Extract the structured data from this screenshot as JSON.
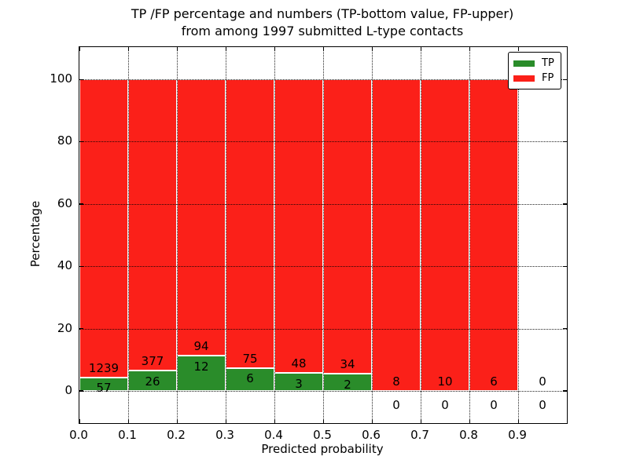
{
  "chart_data": {
    "type": "bar",
    "subtype": "stacked-percentage-histogram",
    "title_lines": [
      "TP /FP percentage and numbers (TP-bottom value, FP-upper)",
      "from among 1997 submitted L-type contacts"
    ],
    "xlabel": "Predicted probability",
    "ylabel": "Percentage",
    "total_submitted": 1997,
    "xlim": [
      0.0,
      1.0
    ],
    "ylim": [
      -10.33,
      110.33
    ],
    "bin_width": 0.1,
    "grid": true,
    "x_tick_values": [
      0.0,
      0.1,
      0.2,
      0.3,
      0.4,
      0.5,
      0.6,
      0.7,
      0.8,
      0.9
    ],
    "x_tick_labels": [
      "0.0",
      "0.1",
      "0.2",
      "0.3",
      "0.4",
      "0.5",
      "0.6",
      "0.7",
      "0.8",
      "0.9"
    ],
    "y_tick_values": [
      0,
      20,
      40,
      60,
      80,
      100
    ],
    "y_tick_labels": [
      "0",
      "20",
      "40",
      "60",
      "80",
      "100"
    ],
    "legend": {
      "position": "upper right",
      "items": [
        {
          "label": "TP",
          "color": "#2a8c2a"
        },
        {
          "label": "FP",
          "color": "#fb2019"
        }
      ]
    },
    "bins": [
      {
        "x0": 0.0,
        "x1": 0.1,
        "tp": 57,
        "fp": 1239,
        "tp_pct": 4.4,
        "bar_pct": 100
      },
      {
        "x0": 0.1,
        "x1": 0.2,
        "tp": 26,
        "fp": 377,
        "tp_pct": 6.45,
        "bar_pct": 100
      },
      {
        "x0": 0.2,
        "x1": 0.3,
        "tp": 12,
        "fp": 94,
        "tp_pct": 11.32,
        "bar_pct": 100
      },
      {
        "x0": 0.3,
        "x1": 0.4,
        "tp": 6,
        "fp": 75,
        "tp_pct": 7.41,
        "bar_pct": 100
      },
      {
        "x0": 0.4,
        "x1": 0.5,
        "tp": 3,
        "fp": 48,
        "tp_pct": 5.88,
        "bar_pct": 100
      },
      {
        "x0": 0.5,
        "x1": 0.6,
        "tp": 2,
        "fp": 34,
        "tp_pct": 5.56,
        "bar_pct": 100
      },
      {
        "x0": 0.6,
        "x1": 0.7,
        "tp": 0,
        "fp": 8,
        "tp_pct": 0,
        "bar_pct": 100
      },
      {
        "x0": 0.7,
        "x1": 0.8,
        "tp": 0,
        "fp": 10,
        "tp_pct": 0,
        "bar_pct": 100
      },
      {
        "x0": 0.8,
        "x1": 0.9,
        "tp": 0,
        "fp": 6,
        "tp_pct": 0,
        "bar_pct": 100
      },
      {
        "x0": 0.9,
        "x1": 1.0,
        "tp": 0,
        "fp": 0,
        "tp_pct": 0,
        "bar_pct": 0
      }
    ],
    "colors": {
      "tp": "#2a8c2a",
      "fp": "#fb2019",
      "bar_edge": "#ffffff",
      "grid": "#000000",
      "text": "#000000",
      "background": "#ffffff"
    }
  }
}
